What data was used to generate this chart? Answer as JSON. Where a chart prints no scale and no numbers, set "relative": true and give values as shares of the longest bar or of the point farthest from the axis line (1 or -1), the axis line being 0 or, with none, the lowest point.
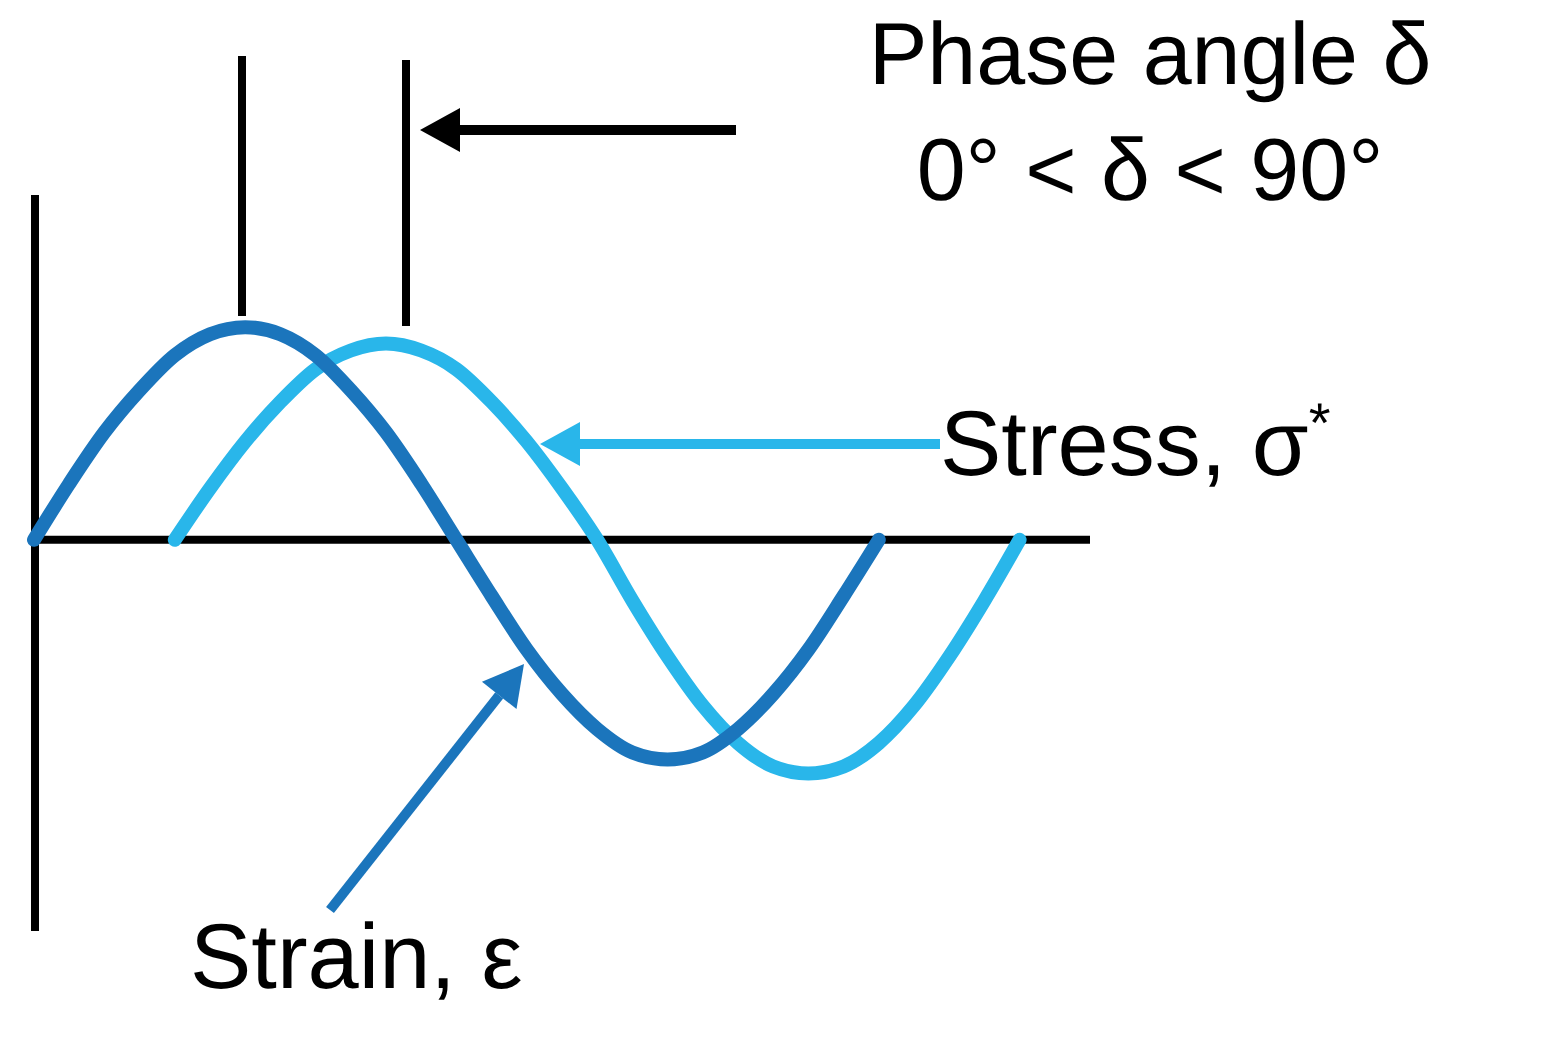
{
  "chart_data": {
    "type": "line",
    "relative": true,
    "annotations": [
      "Phase angle δ\n0° < δ < 90°"
    ],
    "categories": [
      null,
      null,
      null,
      null,
      null,
      null,
      null,
      null,
      null,
      null,
      null,
      null,
      null,
      null,
      null,
      null,
      null,
      null,
      null,
      null,
      null,
      null,
      null,
      null,
      null,
      null,
      null,
      null,
      null,
      null,
      null
    ],
    "series": [
      {
        "name": "Stress, σ$^{*}$",
        "color": "#29b6ea",
        "values": [
          null,
          null,
          null,
          null,
          0,
          0.22,
          0.42,
          0.59,
          0.73,
          0.81,
          0.84,
          0.81,
          0.73,
          0.59,
          0.42,
          0.22,
          0,
          -0.26,
          -0.5,
          -0.71,
          -0.87,
          -0.97,
          -1,
          -0.97,
          -0.87,
          -0.71,
          -0.5,
          -0.26,
          0,
          null,
          null
        ]
      },
      {
        "name": "Strain, ε",
        "color": "#1b75bc",
        "values": [
          0,
          0.24,
          0.46,
          0.64,
          0.79,
          0.88,
          0.91,
          0.88,
          0.79,
          0.64,
          0.46,
          0.24,
          0,
          -0.24,
          -0.47,
          -0.66,
          -0.81,
          -0.91,
          -0.94,
          -0.91,
          -0.81,
          -0.66,
          -0.47,
          -0.24,
          0,
          null,
          null,
          null,
          null,
          null,
          null
        ]
      }
    ]
  }
}
